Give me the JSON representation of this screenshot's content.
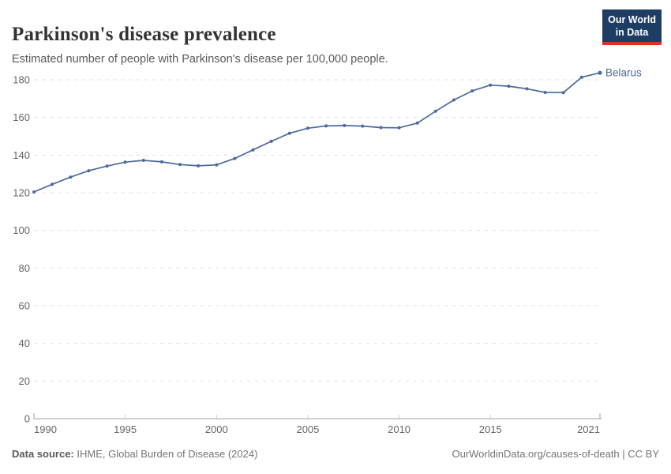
{
  "header": {
    "title": "Parkinson's disease prevalence",
    "subtitle": "Estimated number of people with Parkinson's disease per 100,000 people.",
    "logo_line1": "Our World",
    "logo_line2": "in Data"
  },
  "chart_data": {
    "type": "line",
    "title": "Parkinson's disease prevalence",
    "subtitle": "Estimated number of people with Parkinson's disease per 100,000 people.",
    "xlabel": "",
    "ylabel": "Estimated number of people with Parkinson's disease per 100,000 people",
    "x": [
      1990,
      1991,
      1992,
      1993,
      1994,
      1995,
      1996,
      1997,
      1998,
      1999,
      2000,
      2001,
      2002,
      2003,
      2004,
      2005,
      2006,
      2007,
      2008,
      2009,
      2010,
      2011,
      2012,
      2013,
      2014,
      2015,
      2016,
      2017,
      2018,
      2019,
      2020,
      2021
    ],
    "series": [
      {
        "name": "Belarus",
        "color": "#4c6a9c",
        "values": [
          120.4,
          124.5,
          128.3,
          131.7,
          134.2,
          136.3,
          137.2,
          136.4,
          135.0,
          134.3,
          134.8,
          138.2,
          142.8,
          147.3,
          151.6,
          154.3,
          155.5,
          155.7,
          155.4,
          154.6,
          154.5,
          157.0,
          163.3,
          169.3,
          174.1,
          177.2,
          176.6,
          175.2,
          173.3,
          173.2,
          181.4,
          183.7
        ]
      }
    ],
    "xticks": [
      1990,
      1995,
      2000,
      2005,
      2010,
      2015,
      2021
    ],
    "yticks": [
      0,
      20,
      40,
      60,
      80,
      100,
      120,
      140,
      160,
      180
    ],
    "xlim": [
      1990,
      2021
    ],
    "ylim": [
      0,
      180
    ],
    "grid": "horizontal-dashed",
    "legend_position": "end-of-line-label",
    "markers": true
  },
  "footer": {
    "datasource_label": "Data source:",
    "datasource_value": " IHME, Global Burden of Disease (2024)",
    "credit": "OurWorldinData.org/causes-of-death | CC BY"
  },
  "colors": {
    "series_line": "#4c6a9c",
    "grid_line": "#e3e3e3",
    "axis_line": "#a1a1a1",
    "inner_tick": "#cccccc",
    "tick_text": "#666666",
    "logo_background": "#1d3d63",
    "logo_stripe": "#d7342c"
  }
}
